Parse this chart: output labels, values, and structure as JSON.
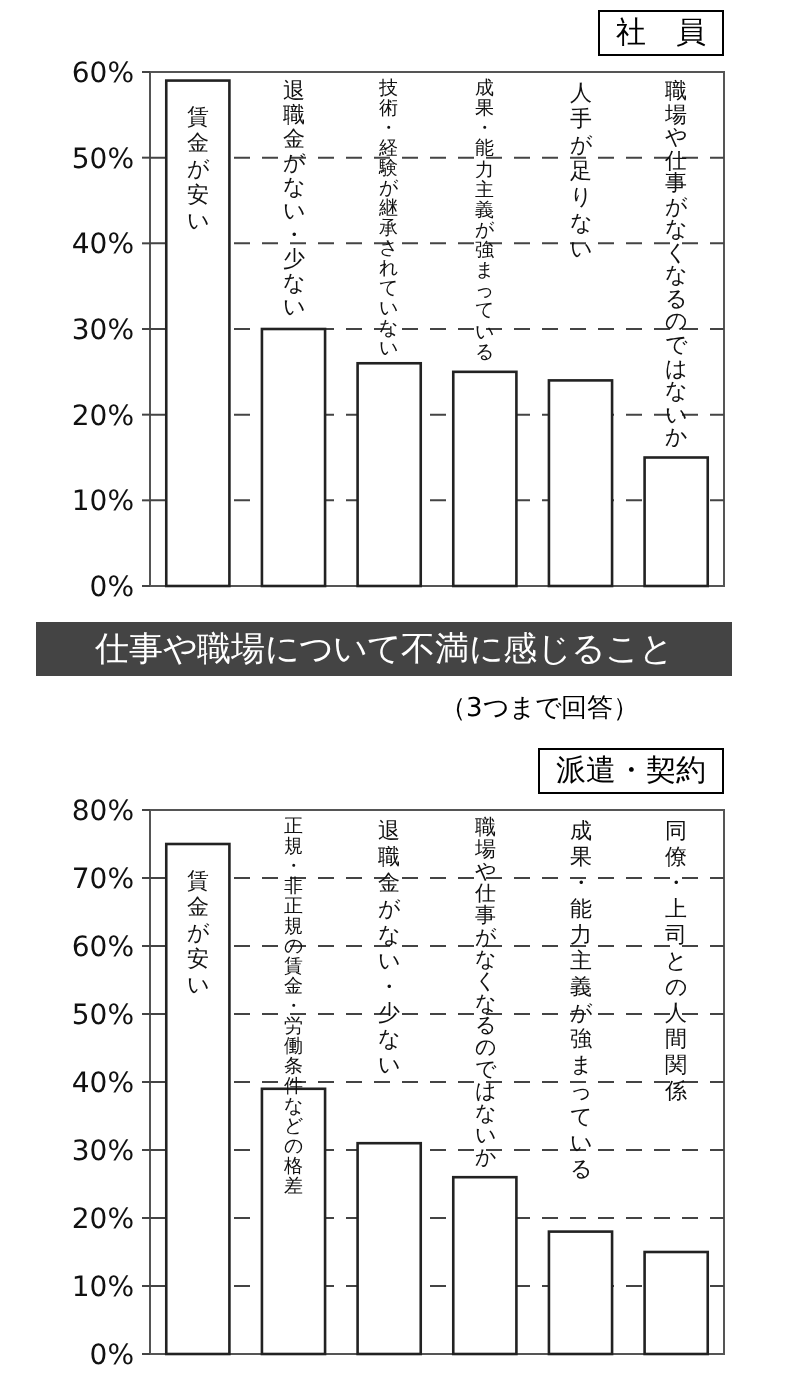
{
  "chart_data": [
    {
      "type": "bar",
      "annotations": [
        "社　員"
      ],
      "categories": [
        "賃金が安い",
        "退職金がない・少ない",
        "技術・経験が継承されていない",
        "成果・能力主義が強まっている",
        "人手が足りない",
        "職場や仕事がなくなるのではないか"
      ],
      "values": [
        59,
        30,
        26,
        25,
        24,
        15
      ],
      "color": "#ffffff",
      "ylim": [
        0,
        60
      ],
      "yticks": [
        {
          "value": 0,
          "label": "0%"
        },
        {
          "value": 10,
          "label": "10%"
        },
        {
          "value": 20,
          "label": "20%"
        },
        {
          "value": 30,
          "label": "30%"
        },
        {
          "value": 40,
          "label": "40%"
        },
        {
          "value": 50,
          "label": "50%"
        },
        {
          "value": 60,
          "label": "60%"
        }
      ],
      "grid": "y"
    },
    {
      "type": "bar",
      "title": "仕事や職場について不満に感じること",
      "subtitle": "（3つまで回答）",
      "annotations": [
        "派遣・契約"
      ],
      "categories": [
        "賃金が安い",
        "正規・非正規の賃金・労働条件などの格差",
        "退職金がない・少ない",
        "職場や仕事がなくなるのではないか",
        "成果・能力主義が強まっている",
        "同僚・上司との人間関係"
      ],
      "values": [
        75,
        39,
        31,
        26,
        18,
        15
      ],
      "color": "#ffffff",
      "ylim": [
        0,
        80
      ],
      "yticks": [
        {
          "value": 0,
          "label": "0%"
        },
        {
          "value": 10,
          "label": "10%"
        },
        {
          "value": 20,
          "label": "20%"
        },
        {
          "value": 30,
          "label": "30%"
        },
        {
          "value": 40,
          "label": "40%"
        },
        {
          "value": 50,
          "label": "50%"
        },
        {
          "value": 60,
          "label": "60%"
        },
        {
          "value": 70,
          "label": "70%"
        },
        {
          "value": 80,
          "label": "80%"
        }
      ],
      "grid": "y"
    }
  ]
}
